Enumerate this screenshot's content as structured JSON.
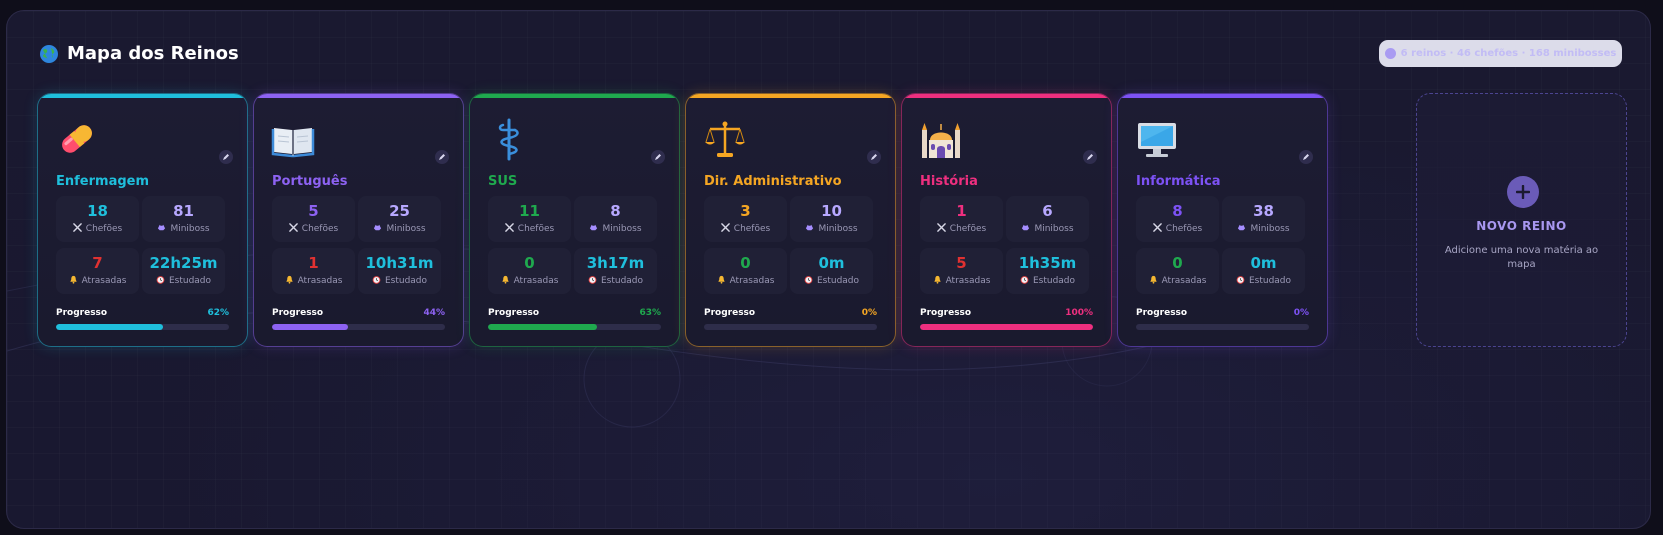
{
  "header": {
    "title": "Mapa dos Reinos",
    "summary": "6 reinos · 46 chefões · 168 minibosses"
  },
  "labels": {
    "chefoes": "Chefões",
    "miniboss": "Miniboss",
    "atrasadas": "Atrasadas",
    "estudado": "Estudado",
    "progresso": "Progresso"
  },
  "kingdoms": [
    {
      "name": "Enfermagem",
      "icon": "pill-icon",
      "color": "#1fbfdc",
      "chefoes": "18",
      "miniboss": "81",
      "atrasadas": "7",
      "estudado": "22h25m",
      "progress": 62,
      "progress_label": "62%"
    },
    {
      "name": "Português",
      "icon": "book-icon",
      "color": "#8d62f2",
      "chefoes": "5",
      "miniboss": "25",
      "atrasadas": "1",
      "estudado": "10h31m",
      "progress": 44,
      "progress_label": "44%"
    },
    {
      "name": "SUS",
      "icon": "caduceus-icon",
      "color": "#1fa94e",
      "chefoes": "11",
      "miniboss": "8",
      "atrasadas": "0",
      "estudado": "3h17m",
      "progress": 63,
      "progress_label": "63%"
    },
    {
      "name": "Dir. Administrativo",
      "icon": "scales-icon",
      "color": "#f5a623",
      "chefoes": "3",
      "miniboss": "10",
      "atrasadas": "0",
      "estudado": "0m",
      "progress": 0,
      "progress_label": "0%"
    },
    {
      "name": "História",
      "icon": "mosque-icon",
      "color": "#ee2f7f",
      "chefoes": "1",
      "miniboss": "6",
      "atrasadas": "5",
      "estudado": "1h35m",
      "progress": 100,
      "progress_label": "100%"
    },
    {
      "name": "Informática",
      "icon": "computer-icon",
      "color": "#7d52f5",
      "chefoes": "8",
      "miniboss": "38",
      "atrasadas": "0",
      "estudado": "0m",
      "progress": 0,
      "progress_label": "0%"
    }
  ],
  "colors": {
    "miniboss_value": "#b7a8ff",
    "atrasadas_alert": "#e03131",
    "atrasadas_ok": "#1fa94e",
    "estudado": "#1fbfdc"
  },
  "new_kingdom": {
    "title": "NOVO REINO",
    "description": "Adicione uma nova matéria ao mapa"
  }
}
